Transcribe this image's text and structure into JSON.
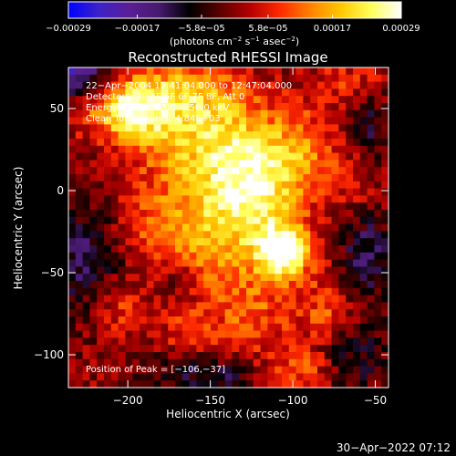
{
  "chart_data": {
    "type": "heatmap",
    "title": "Reconstructed RHESSI Image",
    "xlabel": "Heliocentric X (arcsec)",
    "ylabel": "Heliocentric Y (arcsec)",
    "xlim": [
      -236,
      -42
    ],
    "ylim": [
      -120,
      75
    ],
    "x_ticks": [
      -200,
      -150,
      -100,
      -50
    ],
    "x_tick_labels": [
      "−200",
      "−150",
      "−100",
      "−50"
    ],
    "y_ticks": [
      -100,
      -50,
      0,
      50
    ],
    "y_tick_labels": [
      "−100",
      "−50",
      "0",
      "50"
    ],
    "colorbar": {
      "range": [
        -0.00029,
        0.00029
      ],
      "tick_values": [
        -0.00029,
        -0.00017,
        -5.8e-05,
        5.8e-05,
        0.00017,
        0.00029
      ],
      "tick_labels": [
        "−0.00029",
        "−0.00017",
        "−5.8e−05",
        "5.8e−05",
        "0.00017",
        "0.00029"
      ],
      "units_prefix": "(photons cm",
      "units_exp1": "−2",
      "units_mid": " s",
      "units_exp2": "−1",
      "units_mid2": " asec",
      "units_exp3": "−2",
      "units_suffix": ")",
      "colors": [
        "#0000ff",
        "#3c22c8",
        "#5a1e96",
        "#461a6e",
        "#000000",
        "#5a0000",
        "#b40000",
        "#ff2a00",
        "#ff8200",
        "#ffc800",
        "#ffff5a",
        "#ffffff"
      ]
    },
    "annotations": [
      "22−Apr−2004 12:41:04.000 to 12:47:04.000",
      "Detectors: 3F 4F 5F 6F 7F 8F, Att 0",
      "Energy Range: 25.0 − 50.0 keV",
      "Clean     Total counts: 4.84E+03"
    ],
    "peak_label": "Position of Peak = [−106,−37]",
    "peak": {
      "x": -106,
      "y": -37
    },
    "sources": [
      {
        "x": -106,
        "y": -37,
        "sx": 12,
        "sy": 12,
        "amp": 0.00029
      },
      {
        "x": -145,
        "y": 25,
        "sx": 30,
        "sy": 25,
        "amp": 0.0002
      },
      {
        "x": -125,
        "y": -5,
        "sx": 18,
        "sy": 22,
        "amp": 0.00018
      },
      {
        "x": -175,
        "y": 58,
        "sx": 25,
        "sy": 15,
        "amp": 0.00016
      },
      {
        "x": -195,
        "y": 45,
        "sx": 12,
        "sy": 12,
        "amp": 0.00015
      },
      {
        "x": -215,
        "y": 50,
        "sx": 15,
        "sy": 12,
        "amp": 0.0001
      },
      {
        "x": -95,
        "y": 20,
        "sx": 14,
        "sy": 20,
        "amp": 0.0001
      },
      {
        "x": -155,
        "y": -35,
        "sx": 20,
        "sy": 22,
        "amp": 0.00013
      },
      {
        "x": -125,
        "y": -75,
        "sx": 18,
        "sy": 18,
        "amp": 0.0001
      },
      {
        "x": -80,
        "y": -75,
        "sx": 12,
        "sy": 15,
        "amp": 0.0001
      },
      {
        "x": -190,
        "y": -20,
        "sx": 18,
        "sy": 18,
        "amp": 7e-05
      },
      {
        "x": -205,
        "y": -70,
        "sx": 12,
        "sy": 12,
        "amp": 0.0001
      },
      {
        "x": -95,
        "y": -110,
        "sx": 15,
        "sy": 10,
        "amp": 0.0001
      },
      {
        "x": -65,
        "y": 65,
        "sx": 15,
        "sy": 12,
        "amp": 7e-05
      },
      {
        "x": -65,
        "y": 10,
        "sx": 12,
        "sy": 15,
        "amp": 5e-05
      },
      {
        "x": -165,
        "y": -85,
        "sx": 12,
        "sy": 10,
        "amp": 6e-05
      },
      {
        "x": -230,
        "y": 70,
        "sx": 14,
        "sy": 12,
        "amp": -0.0002
      },
      {
        "x": -225,
        "y": -40,
        "sx": 18,
        "sy": 25,
        "amp": -0.00012
      },
      {
        "x": -55,
        "y": -40,
        "sx": 12,
        "sy": 18,
        "amp": -0.00012
      },
      {
        "x": -65,
        "y": -100,
        "sx": 15,
        "sy": 15,
        "amp": -0.0001
      },
      {
        "x": -150,
        "y": -112,
        "sx": 22,
        "sy": 8,
        "amp": -0.0001
      },
      {
        "x": -55,
        "y": 40,
        "sx": 10,
        "sy": 15,
        "amp": -0.0001
      },
      {
        "x": -170,
        "y": -55,
        "sx": 10,
        "sy": 10,
        "amp": -8e-05
      }
    ],
    "noise_amp": 5e-05
  },
  "timestamp": "30−Apr−2022 07:12"
}
